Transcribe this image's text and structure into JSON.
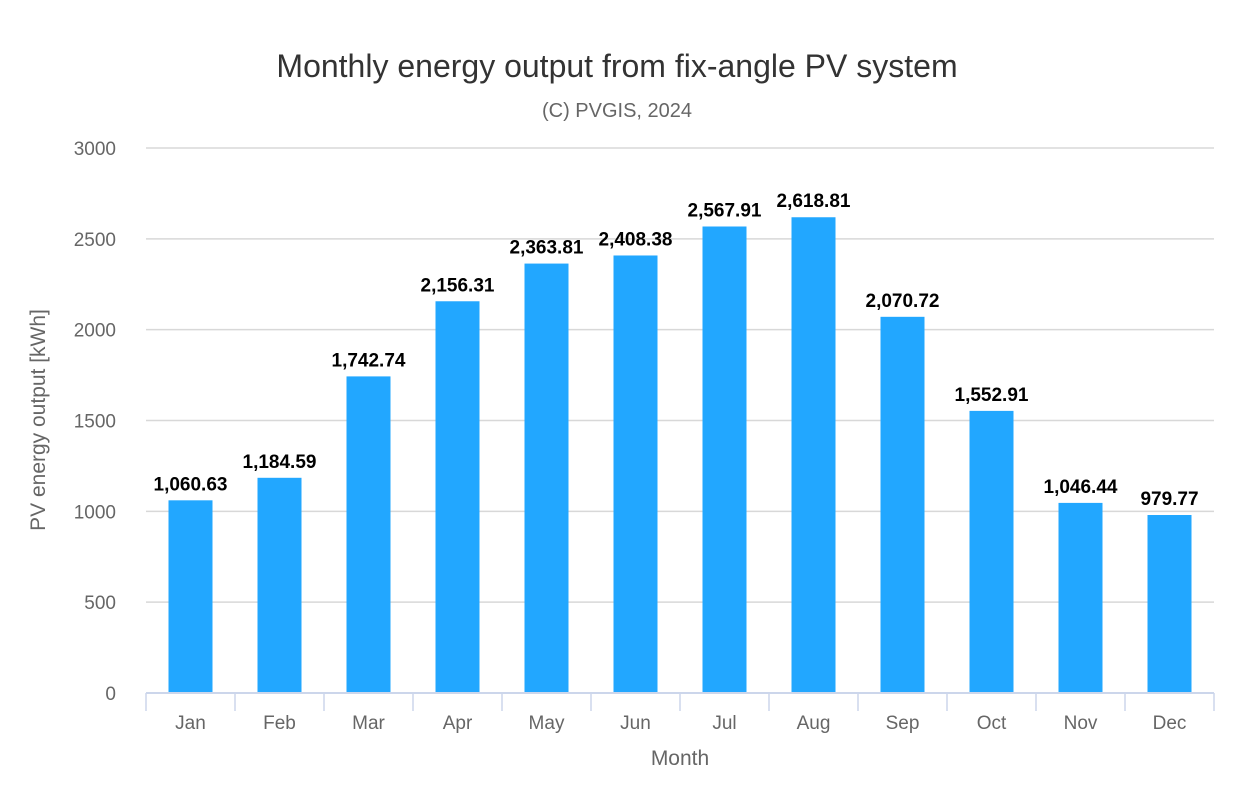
{
  "chart_data": {
    "type": "bar",
    "title": "Monthly energy output from fix-angle PV system",
    "subtitle": "(C) PVGIS, 2024",
    "xlabel": "Month",
    "ylabel": "PV energy output [kWh]",
    "categories": [
      "Jan",
      "Feb",
      "Mar",
      "Apr",
      "May",
      "Jun",
      "Jul",
      "Aug",
      "Sep",
      "Oct",
      "Nov",
      "Dec"
    ],
    "values": [
      1060.63,
      1184.59,
      1742.74,
      2156.31,
      2363.81,
      2408.38,
      2567.91,
      2618.81,
      2070.72,
      1552.91,
      1046.44,
      979.77
    ],
    "data_labels": [
      "1,060.63",
      "1,184.59",
      "1,742.74",
      "2,156.31",
      "2,363.81",
      "2,408.38",
      "2,567.91",
      "2,618.81",
      "2,070.72",
      "1,552.91",
      "1,046.44",
      "979.77"
    ],
    "ylim": [
      0,
      3000
    ],
    "yticks": [
      0,
      500,
      1000,
      1500,
      2000,
      2500,
      3000
    ],
    "ytick_labels": [
      "0",
      "500",
      "1000",
      "1500",
      "2000",
      "2500",
      "3000"
    ],
    "grid": true,
    "legend": "none",
    "bar_color": "#22a7ff"
  }
}
